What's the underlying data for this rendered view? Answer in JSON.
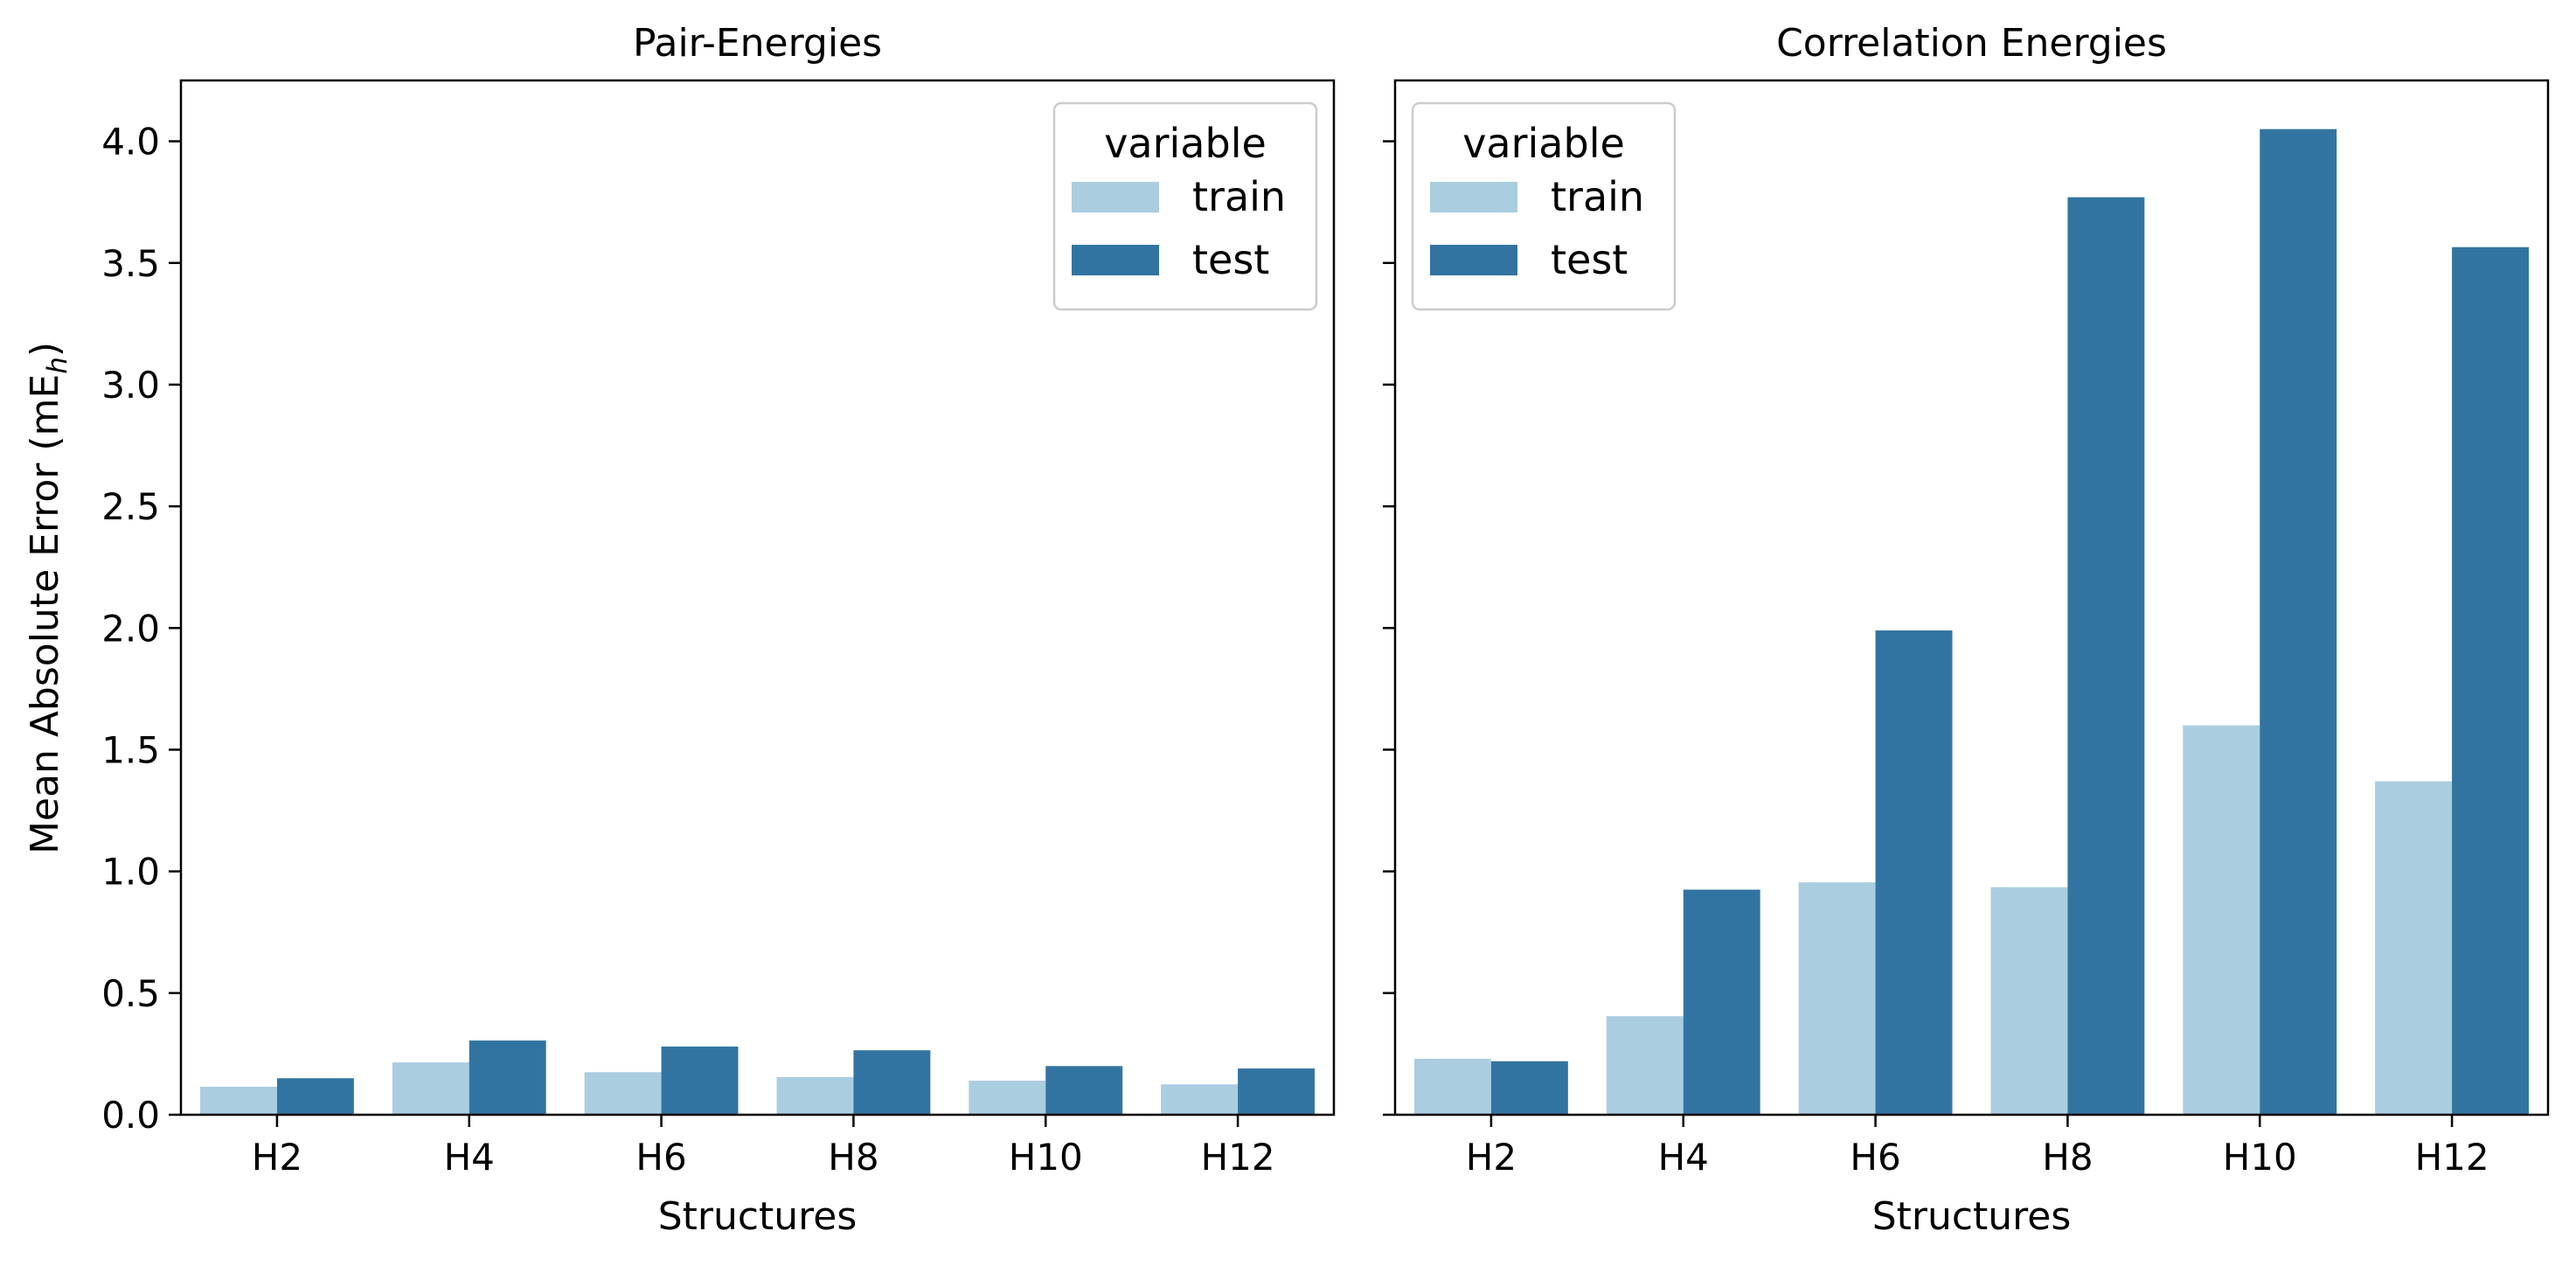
{
  "chart_data": [
    {
      "type": "bar",
      "title": "Pair-Energies",
      "xlabel": "Structures",
      "ylabel_prefix": "Mean Absolute Error (mE",
      "ylabel_sub": "h",
      "ylabel_suffix": ")",
      "ylim": [
        0,
        4.25
      ],
      "yticks": [
        "0.0",
        "0.5",
        "1.0",
        "1.5",
        "2.0",
        "2.5",
        "3.0",
        "3.5",
        "4.0"
      ],
      "categories": [
        "H2",
        "H4",
        "H6",
        "H8",
        "H10",
        "H12"
      ],
      "series": [
        {
          "name": "train",
          "color": "#abcde0",
          "values": [
            0.115,
            0.215,
            0.175,
            0.155,
            0.14,
            0.125
          ]
        },
        {
          "name": "test",
          "color": "#3274a1",
          "values": [
            0.15,
            0.305,
            0.28,
            0.265,
            0.2,
            0.19
          ]
        }
      ],
      "legend": {
        "title": "variable",
        "placement": "top-right"
      },
      "grid": false
    },
    {
      "type": "bar",
      "title": "Correlation Energies",
      "xlabel": "Structures",
      "ylim": [
        0,
        4.25
      ],
      "categories": [
        "H2",
        "H4",
        "H6",
        "H8",
        "H10",
        "H12"
      ],
      "series": [
        {
          "name": "train",
          "color": "#abcde0",
          "values": [
            0.23,
            0.405,
            0.955,
            0.935,
            1.6,
            1.37
          ]
        },
        {
          "name": "test",
          "color": "#3274a1",
          "values": [
            0.22,
            0.925,
            1.99,
            3.77,
            4.05,
            3.565
          ]
        }
      ],
      "legend": {
        "title": "variable",
        "placement": "top-left"
      },
      "grid": false,
      "sharey": true
    }
  ]
}
